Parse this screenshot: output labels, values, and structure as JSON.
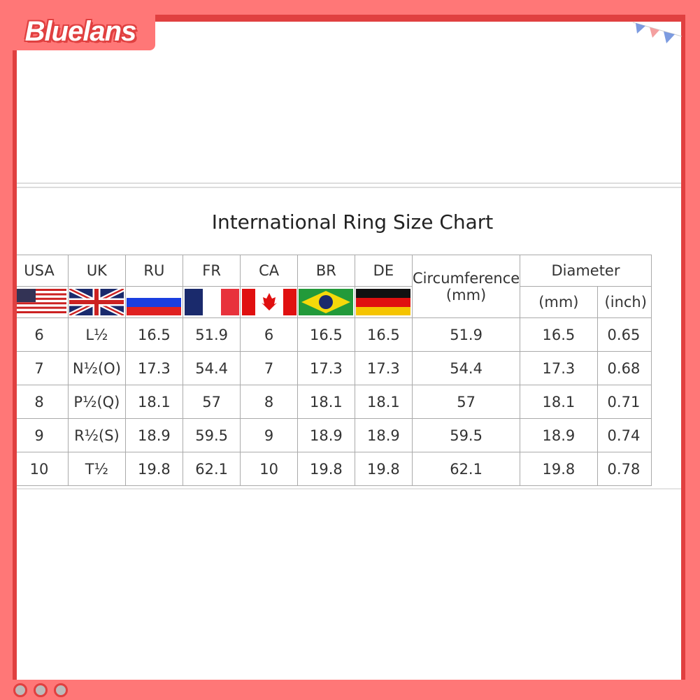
{
  "brand": {
    "logo_text": "Bluelans"
  },
  "colors": {
    "frame": "#ff7777",
    "border": "#e04040"
  },
  "title": "International Ring Size Chart",
  "table": {
    "headers": [
      "USA",
      "UK",
      "RU",
      "FR",
      "CA",
      "BR",
      "DE",
      "Circumference\n(mm)",
      "Diameter"
    ],
    "circumference_line1": "Circumference",
    "circumference_line2": "(mm)",
    "diameter_sub": [
      "(mm)",
      "(inch)"
    ],
    "flags": [
      "usa-flag",
      "uk-flag",
      "russia-flag",
      "france-flag",
      "canada-flag",
      "brazil-flag",
      "germany-flag"
    ],
    "rows": [
      [
        "6",
        "L½",
        "16.5",
        "51.9",
        "6",
        "16.5",
        "16.5",
        "51.9",
        "16.5",
        "0.65"
      ],
      [
        "7",
        "N½(O)",
        "17.3",
        "54.4",
        "7",
        "17.3",
        "17.3",
        "54.4",
        "17.3",
        "0.68"
      ],
      [
        "8",
        "P½(Q)",
        "18.1",
        "57",
        "8",
        "18.1",
        "18.1",
        "57",
        "18.1",
        "0.71"
      ],
      [
        "9",
        "R½(S)",
        "18.9",
        "59.5",
        "9",
        "18.9",
        "18.9",
        "59.5",
        "18.9",
        "0.74"
      ],
      [
        "10",
        "T½",
        "19.8",
        "62.1",
        "10",
        "19.8",
        "19.8",
        "62.1",
        "19.8",
        "0.78"
      ]
    ]
  }
}
